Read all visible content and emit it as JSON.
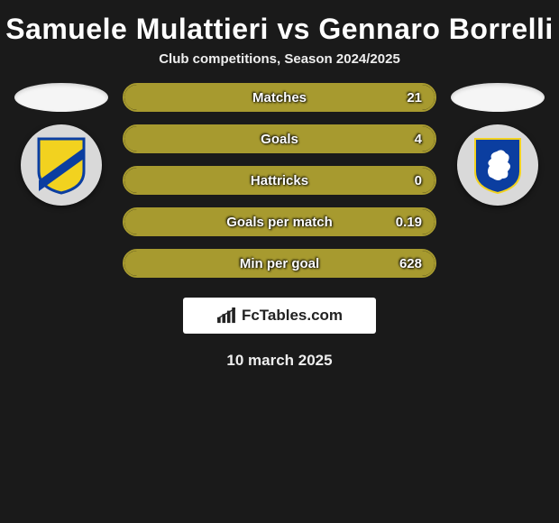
{
  "title": "Samuele Mulattieri vs Gennaro Borrelli",
  "subtitle": "Club competitions, Season 2024/2025",
  "accent_color": "#a79a2f",
  "bar_bg": "#0f0f0f",
  "stats": [
    {
      "label": "Matches",
      "value": "21",
      "fill_pct": 100
    },
    {
      "label": "Goals",
      "value": "4",
      "fill_pct": 100
    },
    {
      "label": "Hattricks",
      "value": "0",
      "fill_pct": 100
    },
    {
      "label": "Goals per match",
      "value": "0.19",
      "fill_pct": 100
    },
    {
      "label": "Min per goal",
      "value": "628",
      "fill_pct": 100
    }
  ],
  "left_club": {
    "name": "frosinone-badge",
    "shield_fill": "#f2d21f",
    "shield_stroke": "#0b3ea0",
    "stripe": "#0b3ea0"
  },
  "right_club": {
    "name": "brescia-badge",
    "shield_fill": "#0b3ea0",
    "shield_stroke": "#f2d21f",
    "lion": "#ffffff"
  },
  "brand": "FcTables.com",
  "date": "10 march 2025"
}
